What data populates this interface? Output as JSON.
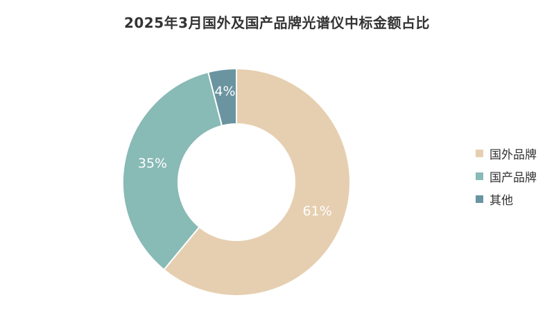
{
  "chart_data": {
    "type": "pie",
    "title": "2025年3月国外及国产品牌光谱仪中标金额占比",
    "donut": true,
    "legend_position": "right",
    "categories": [
      "国外品牌",
      "国产品牌",
      "其他"
    ],
    "values": [
      61,
      35,
      4
    ],
    "labels": [
      "61%",
      "35%",
      "4%"
    ],
    "colors": [
      "#E6CFB0",
      "#88BAB6",
      "#6A94A0"
    ]
  }
}
